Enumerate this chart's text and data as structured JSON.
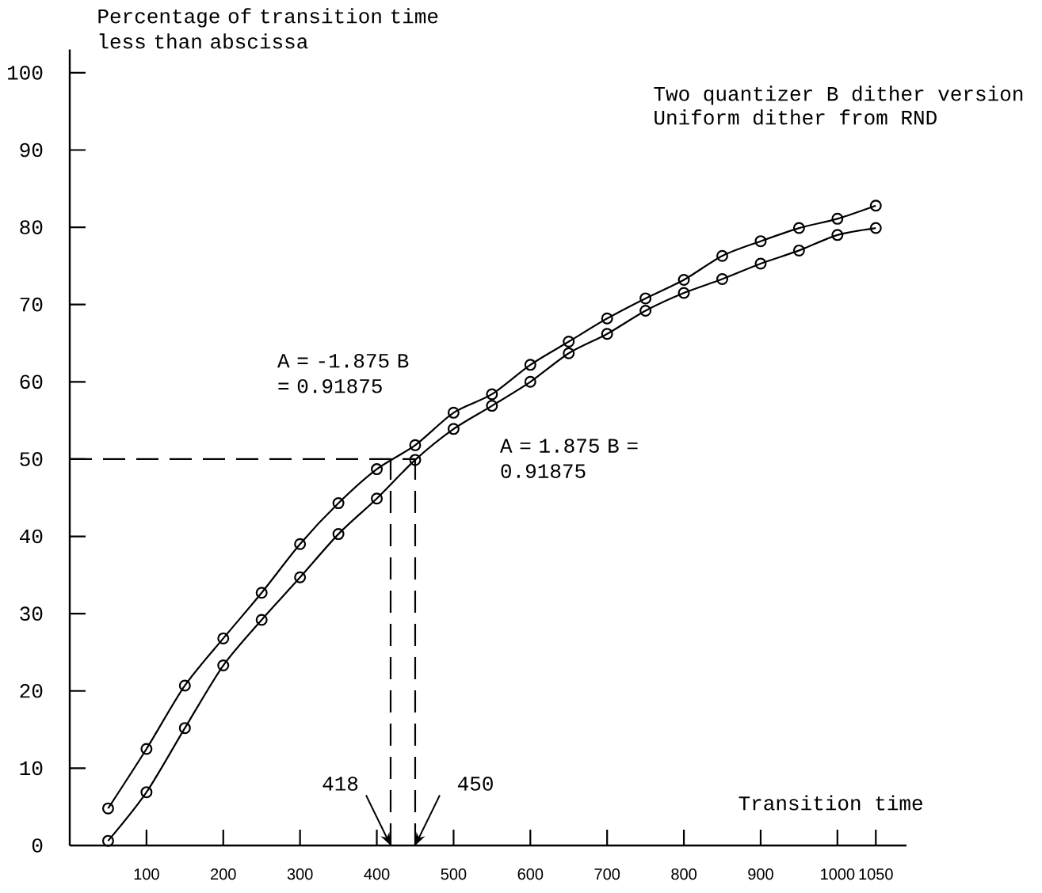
{
  "chart_data": {
    "type": "line",
    "title": "Two quantizer B dither version",
    "subtitle": "Uniform dither from RND",
    "xlabel": "Transition time",
    "ylabel": "Percentage of transition time less than abscissa",
    "x": [
      50,
      100,
      150,
      200,
      250,
      300,
      350,
      400,
      450,
      500,
      550,
      600,
      650,
      700,
      750,
      800,
      850,
      900,
      950,
      1000,
      1050
    ],
    "series": [
      {
        "name": "A = -1.875 B = 0.91875",
        "color": "#000000",
        "values": [
          4.8,
          12.5,
          20.7,
          26.8,
          32.7,
          39.0,
          44.3,
          48.7,
          51.8,
          56.0,
          58.4,
          62.2,
          65.2,
          68.2,
          70.8,
          73.2,
          76.3,
          78.2,
          79.9,
          81.1,
          82.8
        ]
      },
      {
        "name": "A = 1.875 B = 0.91875",
        "color": "#000000",
        "values": [
          0.6,
          6.9,
          15.2,
          23.3,
          29.2,
          34.7,
          40.3,
          44.9,
          49.9,
          53.9,
          56.9,
          60.0,
          63.7,
          66.2,
          69.2,
          71.5,
          73.3,
          75.3,
          77.0,
          79.0,
          79.9
        ]
      }
    ],
    "xlim": [
      0,
      1090
    ],
    "ylim": [
      0,
      103
    ],
    "xticks": [
      100,
      200,
      300,
      400,
      500,
      600,
      700,
      800,
      900,
      1000,
      1050
    ],
    "yticks": [
      0,
      10,
      20,
      30,
      40,
      50,
      60,
      70,
      80,
      90,
      100
    ],
    "marker": "circle",
    "line_style": "solid",
    "ref_lines": [
      {
        "axis": "x",
        "value": 418,
        "label": "418",
        "line_style": "dashed"
      },
      {
        "axis": "x",
        "value": 450,
        "label": "450",
        "line_style": "dashed"
      },
      {
        "axis": "y",
        "value": 50,
        "line_style": "dashed"
      }
    ]
  }
}
